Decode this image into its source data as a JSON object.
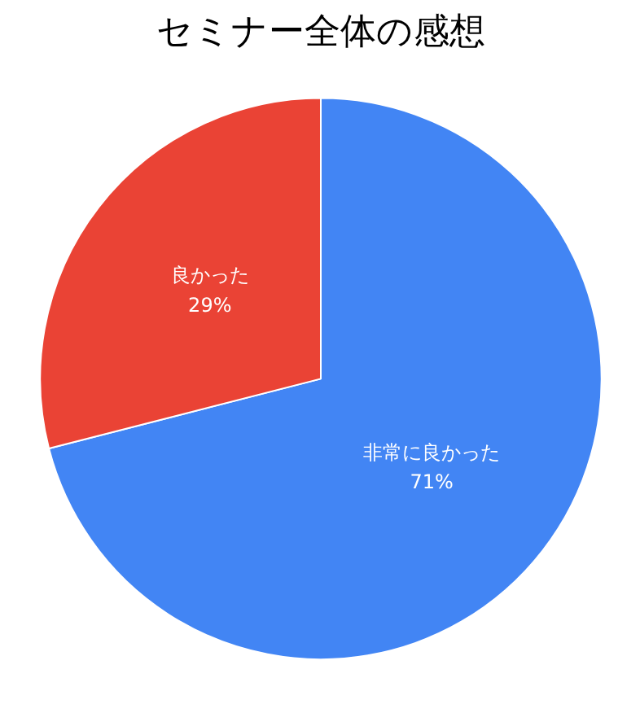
{
  "chart_data": {
    "type": "pie",
    "title": "セミナー全体の感想",
    "categories": [
      "非常に良かった",
      "良かった"
    ],
    "values": [
      71,
      29
    ],
    "colors": [
      "#4285f4",
      "#ea4335"
    ],
    "value_labels": [
      "71%",
      "29%"
    ],
    "legend": false
  }
}
